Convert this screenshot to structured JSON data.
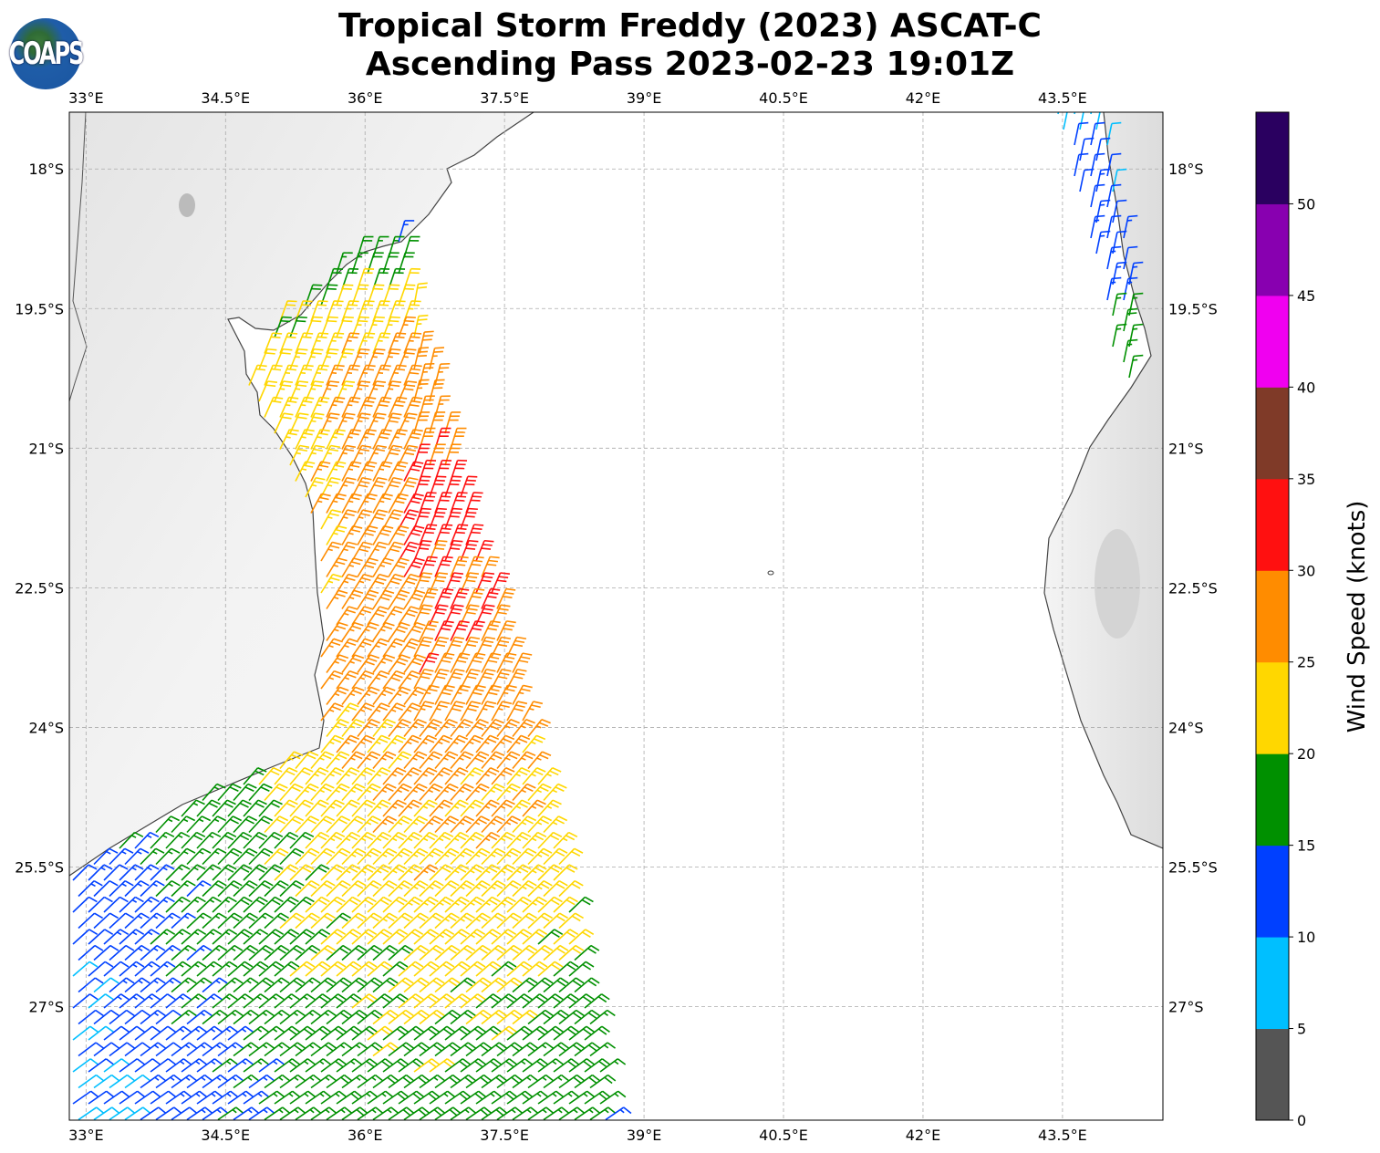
{
  "title": {
    "line1": "Tropical Storm Freddy (2023) ASCAT-C",
    "line2": "Ascending Pass 2023-02-23 19:01Z"
  },
  "logo": {
    "text": "COAPS"
  },
  "map": {
    "lon_range": [
      32.82,
      44.58
    ],
    "lat_range": [
      -17.39,
      -28.22
    ],
    "lon_ticks": [
      {
        "value": 33,
        "label": "33°E"
      },
      {
        "value": 34.5,
        "label": "34.5°E"
      },
      {
        "value": 36,
        "label": "36°E"
      },
      {
        "value": 37.5,
        "label": "37.5°E"
      },
      {
        "value": 39,
        "label": "39°E"
      },
      {
        "value": 40.5,
        "label": "40.5°E"
      },
      {
        "value": 42,
        "label": "42°E"
      },
      {
        "value": 43.5,
        "label": "43.5°E"
      }
    ],
    "lat_ticks": [
      {
        "value": -18,
        "label": "18°S"
      },
      {
        "value": -19.5,
        "label": "19.5°S"
      },
      {
        "value": -21,
        "label": "21°S"
      },
      {
        "value": -22.5,
        "label": "22.5°S"
      },
      {
        "value": -24,
        "label": "24°S"
      },
      {
        "value": -25.5,
        "label": "25.5°S"
      },
      {
        "value": -27,
        "label": "27°S"
      }
    ]
  },
  "colorbar": {
    "label": "Wind Speed (knots)",
    "bins": [
      {
        "min": 0,
        "max": 5,
        "color": "#555555"
      },
      {
        "min": 5,
        "max": 10,
        "color": "#00bfff"
      },
      {
        "min": 10,
        "max": 15,
        "color": "#0040ff"
      },
      {
        "min": 15,
        "max": 20,
        "color": "#009000"
      },
      {
        "min": 20,
        "max": 25,
        "color": "#ffd700"
      },
      {
        "min": 25,
        "max": 30,
        "color": "#ff8c00"
      },
      {
        "min": 30,
        "max": 35,
        "color": "#ff1010"
      },
      {
        "min": 35,
        "max": 40,
        "color": "#7f3a28"
      },
      {
        "min": 40,
        "max": 45,
        "color": "#f000f0"
      },
      {
        "min": 45,
        "max": 50,
        "color": "#8800b0"
      },
      {
        "min": 50,
        "max": 55,
        "color": "#2a0060"
      }
    ],
    "tick_labels": [
      "0",
      "5",
      "10",
      "15",
      "20",
      "25",
      "30",
      "35",
      "40",
      "45",
      "50"
    ]
  }
}
